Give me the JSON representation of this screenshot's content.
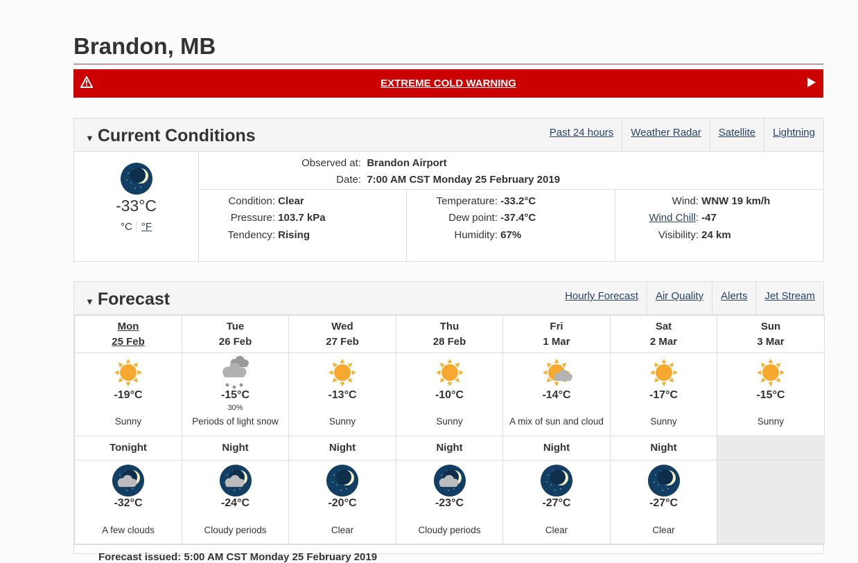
{
  "page_title": "Brandon, MB",
  "warning": {
    "label": "EXTREME COLD WARNING",
    "color": "#cc0000"
  },
  "current": {
    "heading": "Current Conditions",
    "links": [
      "Past 24 hours",
      "Weather Radar",
      "Satellite",
      "Lightning"
    ],
    "icon": "moon-clear-icon",
    "temp": "-33°C",
    "unit_c": "°C",
    "unit_f": "°F",
    "observed_label": "Observed at:",
    "observed_value": "Brandon Airport",
    "date_label": "Date:",
    "date_value": "7:00 AM CST Monday 25 February 2019",
    "condition_label": "Condition:",
    "condition": "Clear",
    "pressure_label": "Pressure:",
    "pressure": "103.7 kPa",
    "tendency_label": "Tendency:",
    "tendency": "Rising",
    "temperature_label": "Temperature:",
    "temperature": "-33.2°C",
    "dewpoint_label": "Dew point:",
    "dewpoint": "-37.4°C",
    "humidity_label": "Humidity:",
    "humidity": "67%",
    "wind_label": "Wind:",
    "wind": "WNW 19 km/h",
    "windchill_label": "Wind Chill",
    "windchill": "-47",
    "visibility_label": "Visibility:",
    "visibility": "24 km"
  },
  "forecast": {
    "heading": "Forecast",
    "links": [
      "Hourly Forecast",
      "Air Quality",
      "Alerts",
      "Jet Stream"
    ],
    "days": [
      {
        "day": "Mon",
        "date": "25 Feb",
        "icon": "sun",
        "temp": "-19°C",
        "pop": "",
        "summary": "Sunny",
        "night_label": "Tonight",
        "night_icon": "moon-cloud",
        "night_temp": "-32°C",
        "night_summary": "A few clouds"
      },
      {
        "day": "Tue",
        "date": "26 Feb",
        "icon": "snow",
        "temp": "-15°C",
        "pop": "30%",
        "summary": "Periods of light snow",
        "night_label": "Night",
        "night_icon": "moon-cloud",
        "night_temp": "-24°C",
        "night_summary": "Cloudy periods"
      },
      {
        "day": "Wed",
        "date": "27 Feb",
        "icon": "sun",
        "temp": "-13°C",
        "pop": "",
        "summary": "Sunny",
        "night_label": "Night",
        "night_icon": "moon",
        "night_temp": "-20°C",
        "night_summary": "Clear"
      },
      {
        "day": "Thu",
        "date": "28 Feb",
        "icon": "sun",
        "temp": "-10°C",
        "pop": "",
        "summary": "Sunny",
        "night_label": "Night",
        "night_icon": "moon-cloud",
        "night_temp": "-23°C",
        "night_summary": "Cloudy periods"
      },
      {
        "day": "Fri",
        "date": "1 Mar",
        "icon": "sun-cloud",
        "temp": "-14°C",
        "pop": "",
        "summary": "A mix of sun and cloud",
        "night_label": "Night",
        "night_icon": "moon",
        "night_temp": "-27°C",
        "night_summary": "Clear"
      },
      {
        "day": "Sat",
        "date": "2 Mar",
        "icon": "sun",
        "temp": "-17°C",
        "pop": "",
        "summary": "Sunny",
        "night_label": "Night",
        "night_icon": "moon",
        "night_temp": "-27°C",
        "night_summary": "Clear"
      },
      {
        "day": "Sun",
        "date": "3 Mar",
        "icon": "sun",
        "temp": "-15°C",
        "pop": "",
        "summary": "Sunny"
      }
    ],
    "issued": "Forecast issued: 5:00 AM CST Monday 25 February 2019"
  }
}
